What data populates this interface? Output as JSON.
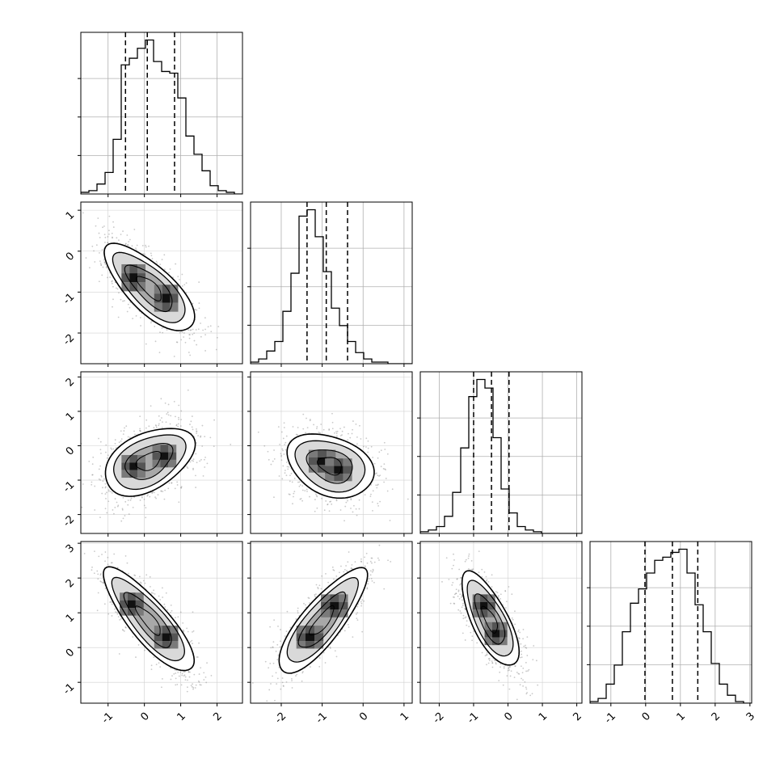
{
  "chart_data": {
    "type": "corner",
    "dimensions": 4,
    "grid": true,
    "axis_ranges": [
      [
        -1.75,
        2.7
      ],
      [
        -2.75,
        1.2
      ],
      [
        -2.55,
        2.15
      ],
      [
        -1.6,
        3.05
      ]
    ],
    "ticks": [
      [
        "-1",
        "0",
        "1",
        "2"
      ],
      [
        "-2",
        "-1",
        "0",
        "1"
      ],
      [
        "-2",
        "-1",
        "0",
        "1",
        "2"
      ],
      [
        "-1",
        "0",
        "1",
        "2",
        "3"
      ]
    ],
    "tick_values": [
      [
        -1,
        0,
        1,
        2
      ],
      [
        -2,
        -1,
        0,
        1
      ],
      [
        -2,
        -1,
        0,
        1,
        2
      ],
      [
        -1,
        0,
        1,
        2,
        3
      ]
    ],
    "histograms": [
      {
        "counts": [
          1,
          2,
          6,
          13,
          33,
          78,
          82,
          88,
          93,
          80,
          74,
          73,
          58,
          35,
          24,
          14,
          5,
          2,
          1,
          0
        ],
        "quantiles": [
          -0.52,
          0.08,
          0.83
        ]
      },
      {
        "counts": [
          1,
          3,
          8,
          14,
          33,
          57,
          93,
          97,
          80,
          58,
          35,
          24,
          14,
          7,
          3,
          1,
          1,
          0,
          0,
          0
        ],
        "quantiles": [
          -1.37,
          -0.9,
          -0.38
        ]
      },
      {
        "counts": [
          1,
          2,
          4,
          10,
          24,
          50,
          80,
          90,
          85,
          56,
          26,
          12,
          4,
          2,
          1,
          0,
          0,
          0,
          0,
          0
        ],
        "quantiles": [
          -1.0,
          -0.48,
          0.03
        ]
      },
      {
        "counts": [
          1,
          3,
          12,
          24,
          45,
          63,
          72,
          82,
          90,
          92,
          95,
          97,
          82,
          62,
          45,
          25,
          12,
          5,
          1,
          0
        ],
        "quantiles": [
          -0.02,
          0.77,
          1.5
        ]
      }
    ],
    "density_blobs": [
      {
        "x": 1,
        "y": 0,
        "centers": [
          [
            -0.3,
            -0.65
          ],
          [
            0.6,
            -1.15
          ]
        ],
        "cov": [
          0.18,
          -0.13,
          0.22
        ]
      },
      {
        "x": 2,
        "y": 0,
        "centers": [
          [
            -0.3,
            -0.6
          ],
          [
            0.55,
            -0.3
          ]
        ],
        "cov": [
          0.2,
          0.07,
          0.22
        ]
      },
      {
        "x": 2,
        "y": 1,
        "centers": [
          [
            -1.0,
            -0.45
          ],
          [
            -0.6,
            -0.7
          ]
        ],
        "cov": [
          0.24,
          -0.05,
          0.2
        ]
      },
      {
        "x": 3,
        "y": 0,
        "centers": [
          [
            -0.35,
            1.25
          ],
          [
            0.6,
            0.3
          ]
        ],
        "cov": [
          0.16,
          -0.16,
          0.33
        ]
      },
      {
        "x": 3,
        "y": 1,
        "centers": [
          [
            -1.3,
            0.3
          ],
          [
            -0.7,
            1.2
          ]
        ],
        "cov": [
          0.2,
          0.2,
          0.37
        ]
      },
      {
        "x": 3,
        "y": 2,
        "centers": [
          [
            -0.7,
            1.2
          ],
          [
            -0.35,
            0.4
          ]
        ],
        "cov": [
          0.14,
          -0.13,
          0.3
        ]
      }
    ]
  }
}
